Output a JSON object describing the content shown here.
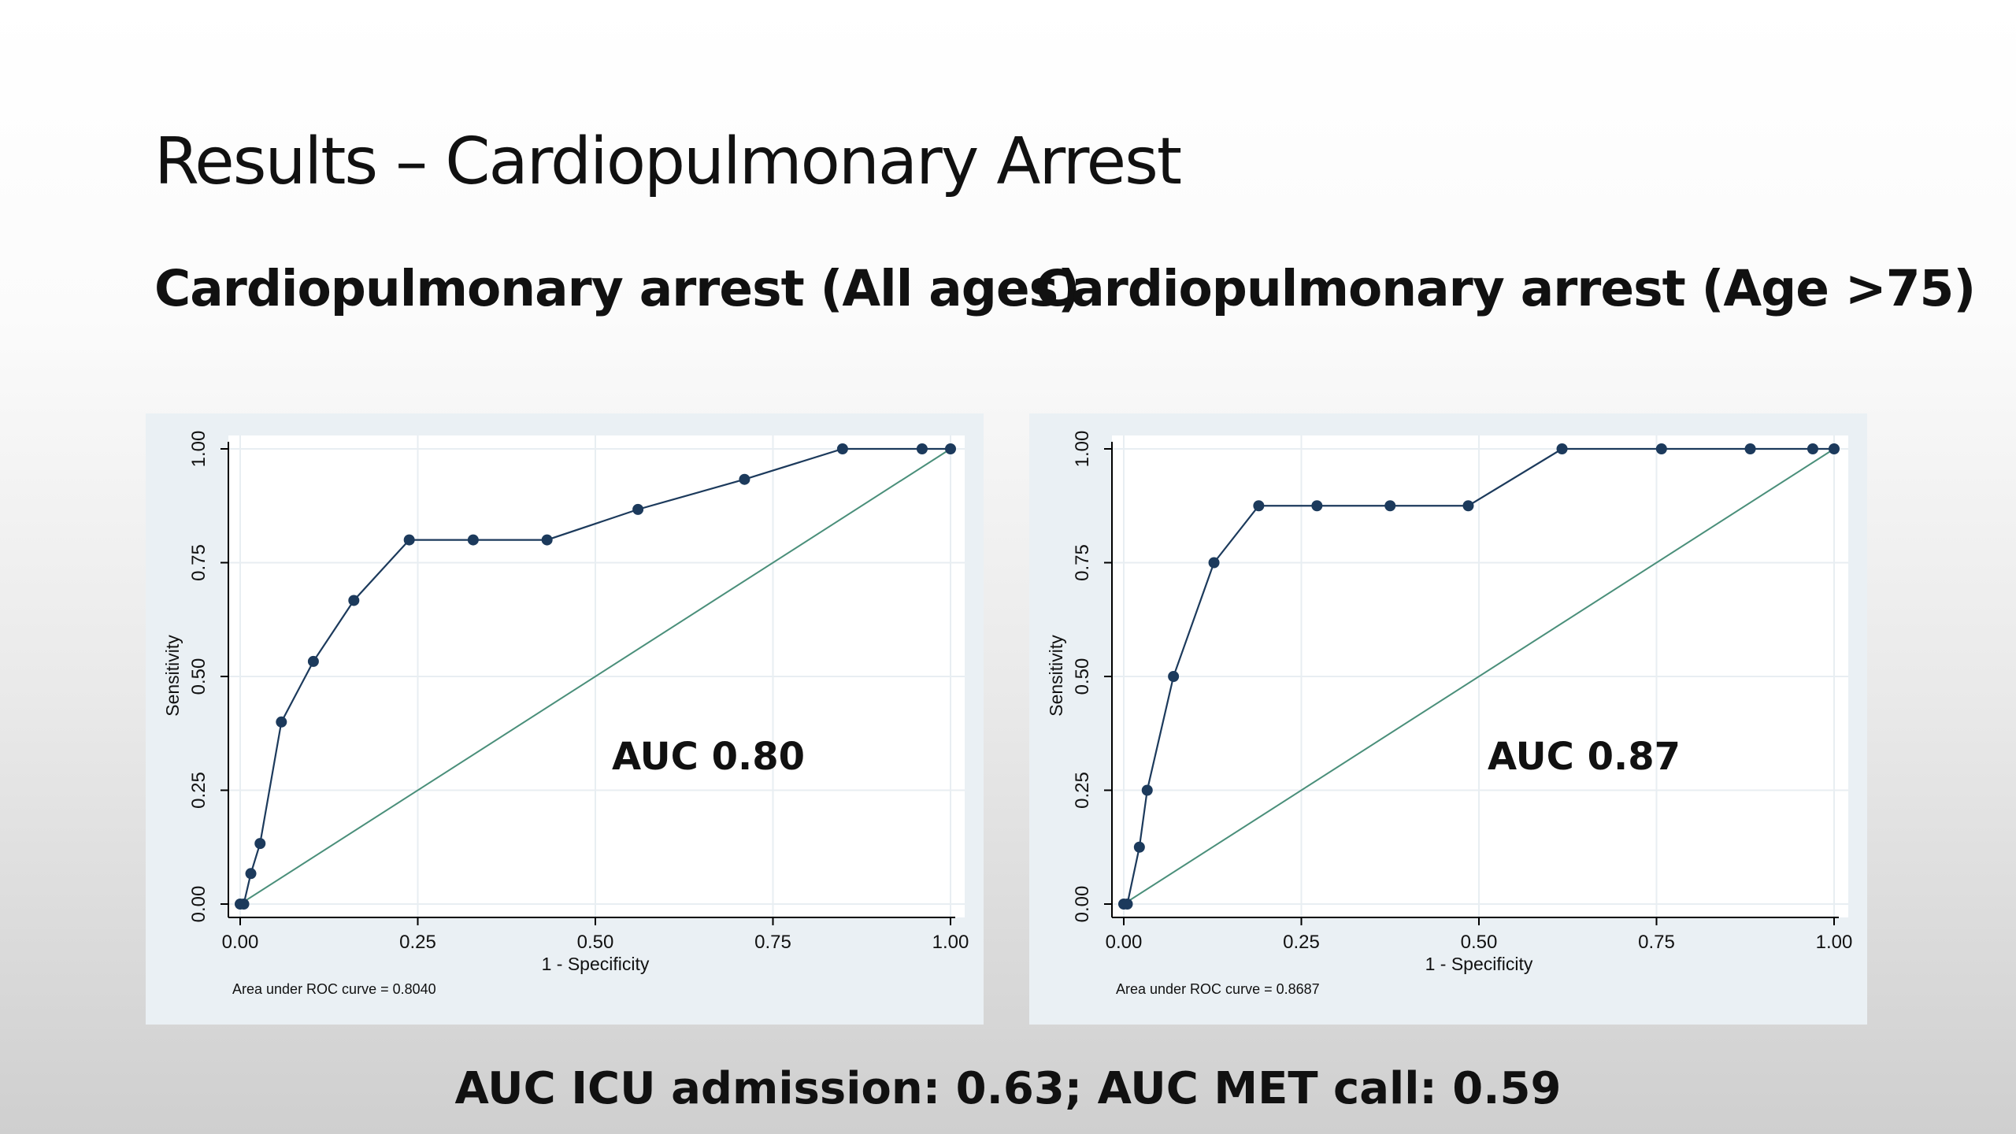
{
  "slide": {
    "title": "Results – Cardiopulmonary Arrest",
    "footer": "AUC ICU admission: 0.63; AUC MET call: 0.59"
  },
  "chart_data": [
    {
      "type": "line",
      "title": "Cardiopulmonary arrest (All ages)",
      "xlabel": "1 - Specificity",
      "ylabel": "Sensitivity",
      "xlim": [
        0,
        1
      ],
      "ylim": [
        0,
        1
      ],
      "xticks": [
        "0.00",
        "0.25",
        "0.50",
        "0.75",
        "1.00"
      ],
      "yticks": [
        "0.00",
        "0.25",
        "0.50",
        "0.75",
        "1.00"
      ],
      "grid": true,
      "series": [
        {
          "x": [
            0,
            0.005,
            0.015,
            0.028,
            0.058,
            0.103,
            0.16,
            0.238,
            0.328,
            0.432,
            0.56,
            0.71,
            0.848,
            0.96,
            1.0
          ],
          "y": [
            0,
            0,
            0.067,
            0.133,
            0.4,
            0.533,
            0.667,
            0.8,
            0.8,
            0.8,
            0.867,
            0.933,
            1.0,
            1.0,
            1.0
          ],
          "color": "#1c3a5c"
        },
        {
          "x": [
            0,
            1
          ],
          "y": [
            0,
            1
          ],
          "color": "#4a8f7a"
        }
      ],
      "annotation": "AUC 0.80",
      "note": "Area under ROC curve = 0.8040"
    },
    {
      "type": "line",
      "title": "Cardiopulmonary arrest (Age >75)",
      "xlabel": "1 - Specificity",
      "ylabel": "Sensitivity",
      "xlim": [
        0,
        1
      ],
      "ylim": [
        0,
        1
      ],
      "xticks": [
        "0.00",
        "0.25",
        "0.50",
        "0.75",
        "1.00"
      ],
      "yticks": [
        "0.00",
        "0.25",
        "0.50",
        "0.75",
        "1.00"
      ],
      "grid": true,
      "series": [
        {
          "x": [
            0,
            0.005,
            0.022,
            0.033,
            0.07,
            0.127,
            0.19,
            0.272,
            0.375,
            0.485,
            0.617,
            0.757,
            0.882,
            0.97,
            1.0
          ],
          "y": [
            0,
            0,
            0.125,
            0.25,
            0.5,
            0.75,
            0.875,
            0.875,
            0.875,
            0.875,
            1.0,
            1.0,
            1.0,
            1.0,
            1.0
          ],
          "color": "#1c3a5c"
        },
        {
          "x": [
            0,
            1
          ],
          "y": [
            0,
            1
          ],
          "color": "#4a8f7a"
        }
      ],
      "annotation": "AUC 0.87",
      "note": "Area under ROC curve = 0.8687"
    }
  ]
}
